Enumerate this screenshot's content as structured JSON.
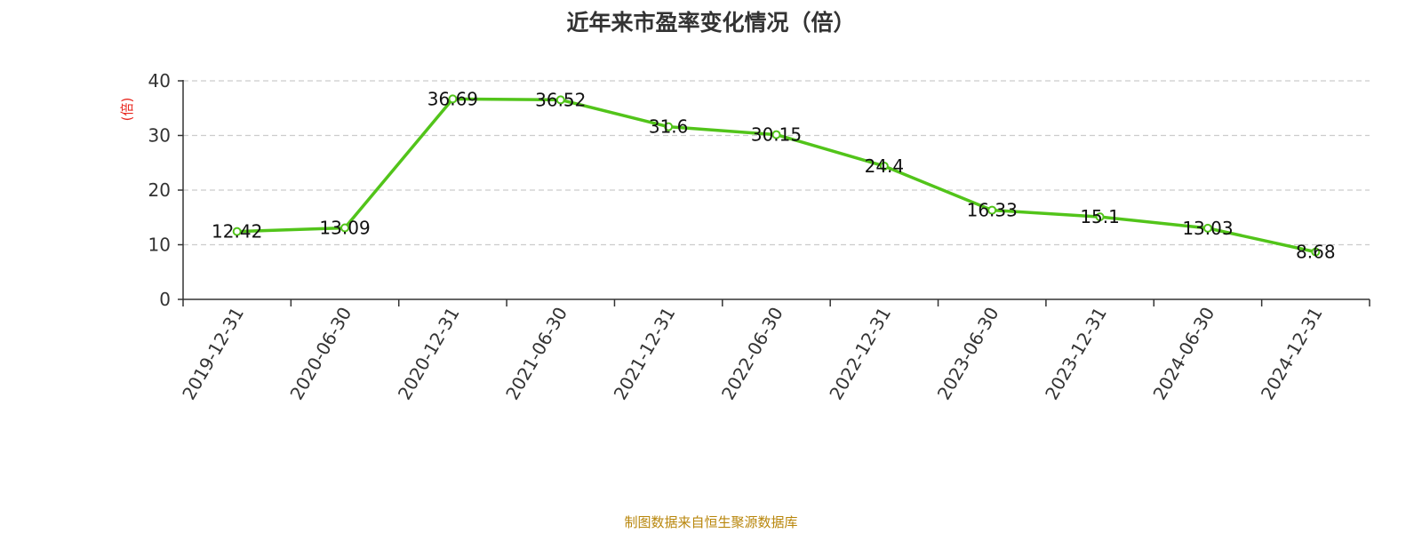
{
  "chart_data": {
    "type": "line",
    "title": "近年来市盈率变化情况（倍）",
    "ylabel": "(倍)",
    "xlabel": "",
    "categories": [
      "2019-12-31",
      "2020-06-30",
      "2020-12-31",
      "2021-06-30",
      "2021-12-31",
      "2022-06-30",
      "2022-12-31",
      "2023-06-30",
      "2023-12-31",
      "2024-06-30",
      "2024-12-31"
    ],
    "values": [
      12.42,
      13.09,
      36.69,
      36.52,
      31.6,
      30.15,
      24.4,
      16.33,
      15.1,
      13.03,
      8.68
    ],
    "value_labels": [
      "12.42",
      "13.09",
      "36.69",
      "36.52",
      "31.6",
      "30.15",
      "24.4",
      "16.33",
      "15.1",
      "13.03",
      "8.68"
    ],
    "ylim": [
      0,
      40
    ],
    "yticks": [
      "0",
      "10",
      "20",
      "30",
      "40"
    ],
    "grid": true,
    "legend": "none",
    "colors": {
      "line": "#52C41A",
      "ylabel": "#E8271F",
      "source": "#B8860B",
      "grid": "#CCCCCC",
      "axis": "#333333"
    }
  },
  "footer": {
    "source": "制图数据来自恒生聚源数据库"
  }
}
